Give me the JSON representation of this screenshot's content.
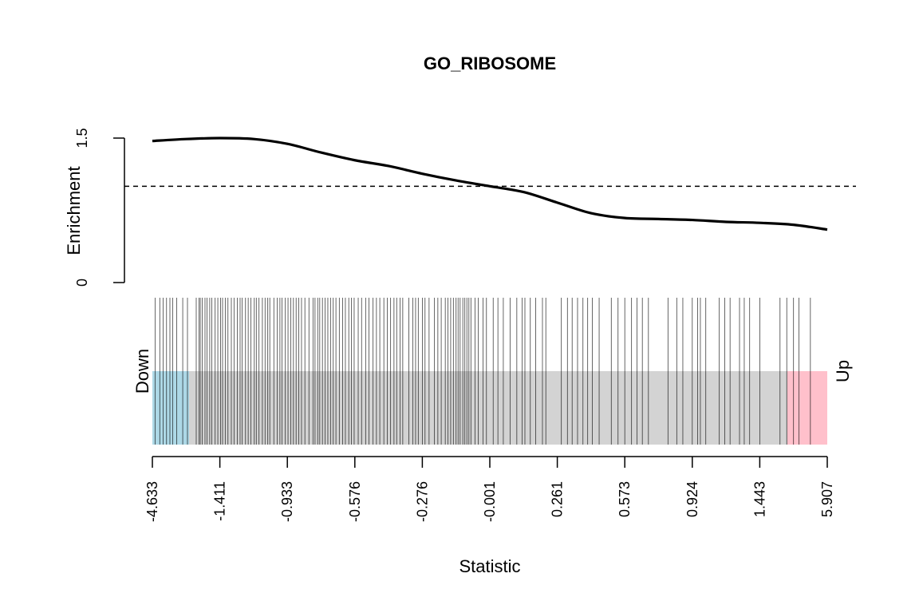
{
  "chart_data": {
    "type": "line",
    "title": "GO_RIBOSOME",
    "ylabel": "Enrichment",
    "xlabel": "Statistic",
    "down_label": "Down",
    "up_label": "Up",
    "ylim": [
      0,
      1.5
    ],
    "y_ticks": [
      "0",
      "1.5"
    ],
    "reference_line": 1.0,
    "x_ticks": [
      "-4.633",
      "-1.411",
      "-0.933",
      "-0.576",
      "-0.276",
      "-0.001",
      "0.261",
      "0.573",
      "0.924",
      "1.443",
      "5.907"
    ],
    "enrichment_curve": {
      "x_rank_fraction": [
        0.0,
        0.05,
        0.1,
        0.15,
        0.2,
        0.25,
        0.3,
        0.35,
        0.4,
        0.45,
        0.5,
        0.55,
        0.6,
        0.65,
        0.7,
        0.75,
        0.8,
        0.85,
        0.9,
        0.95,
        1.0
      ],
      "y": [
        1.47,
        1.49,
        1.5,
        1.49,
        1.44,
        1.35,
        1.27,
        1.21,
        1.13,
        1.06,
        1.0,
        0.94,
        0.83,
        0.72,
        0.67,
        0.66,
        0.65,
        0.63,
        0.62,
        0.6,
        0.55
      ]
    },
    "gene_ranks": [
      0.004,
      0.011,
      0.016,
      0.021,
      0.026,
      0.03,
      0.036,
      0.045,
      0.052,
      0.065,
      0.069,
      0.071,
      0.074,
      0.078,
      0.081,
      0.085,
      0.088,
      0.093,
      0.097,
      0.101,
      0.104,
      0.108,
      0.112,
      0.117,
      0.121,
      0.126,
      0.13,
      0.133,
      0.138,
      0.142,
      0.146,
      0.151,
      0.154,
      0.158,
      0.163,
      0.167,
      0.171,
      0.174,
      0.18,
      0.185,
      0.189,
      0.192,
      0.197,
      0.201,
      0.205,
      0.209,
      0.213,
      0.217,
      0.221,
      0.226,
      0.232,
      0.238,
      0.241,
      0.245,
      0.248,
      0.252,
      0.256,
      0.26,
      0.264,
      0.268,
      0.272,
      0.277,
      0.282,
      0.286,
      0.291,
      0.295,
      0.299,
      0.305,
      0.31,
      0.316,
      0.321,
      0.327,
      0.332,
      0.337,
      0.343,
      0.348,
      0.353,
      0.358,
      0.362,
      0.367,
      0.371,
      0.38,
      0.386,
      0.39,
      0.394,
      0.4,
      0.404,
      0.41,
      0.418,
      0.423,
      0.428,
      0.434,
      0.438,
      0.442,
      0.446,
      0.45,
      0.453,
      0.456,
      0.46,
      0.463,
      0.466,
      0.469,
      0.472,
      0.478,
      0.483,
      0.49,
      0.495,
      0.505,
      0.512,
      0.52,
      0.53,
      0.54,
      0.548,
      0.552,
      0.56,
      0.568,
      0.578,
      0.583,
      0.606,
      0.615,
      0.622,
      0.63,
      0.638,
      0.645,
      0.652,
      0.662,
      0.68,
      0.69,
      0.7,
      0.71,
      0.718,
      0.726,
      0.735,
      0.764,
      0.777,
      0.786,
      0.8,
      0.808,
      0.812,
      0.82,
      0.84,
      0.848,
      0.856,
      0.87,
      0.877,
      0.885,
      0.9,
      0.93,
      0.94,
      0.95,
      0.958,
      0.975
    ]
  },
  "colors": {
    "down_region": "#ADD8E6",
    "up_region": "#FFC0CB",
    "middle_region": "#D3D3D3",
    "curve": "#000000",
    "gene_line": "#000000"
  }
}
